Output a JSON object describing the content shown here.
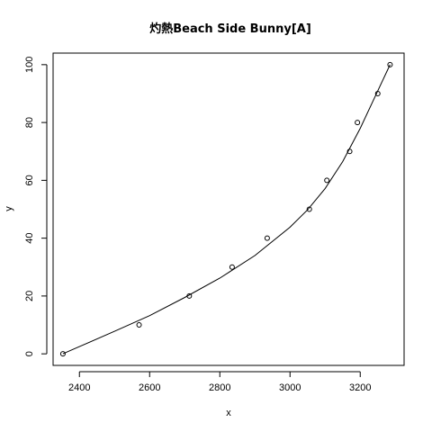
{
  "chart_data": {
    "type": "scatter",
    "title": "灼熱Beach Side Bunny[A]",
    "xlabel": "x",
    "ylabel": "y",
    "xlim": [
      2325,
      3325
    ],
    "ylim": [
      -4,
      104
    ],
    "xticks": [
      2400,
      2600,
      2800,
      3000,
      3200
    ],
    "yticks": [
      0,
      20,
      40,
      60,
      80,
      100
    ],
    "grid": false,
    "points": [
      {
        "x": 2353,
        "y": 0
      },
      {
        "x": 2570,
        "y": 10
      },
      {
        "x": 2713,
        "y": 20
      },
      {
        "x": 2835,
        "y": 30
      },
      {
        "x": 2935,
        "y": 40
      },
      {
        "x": 3055,
        "y": 50
      },
      {
        "x": 3105,
        "y": 60
      },
      {
        "x": 3170,
        "y": 70
      },
      {
        "x": 3192,
        "y": 80
      },
      {
        "x": 3250,
        "y": 90
      },
      {
        "x": 3285,
        "y": 100
      }
    ],
    "fit_line": {
      "x": [
        2353,
        2400,
        2500,
        2600,
        2700,
        2800,
        2900,
        3000,
        3050,
        3100,
        3150,
        3200,
        3250,
        3285
      ],
      "y": [
        0,
        2.5,
        7.8,
        13.2,
        19.5,
        26.2,
        34.0,
        43.8,
        49.8,
        57.2,
        66.5,
        78.0,
        91.0,
        100
      ]
    }
  }
}
